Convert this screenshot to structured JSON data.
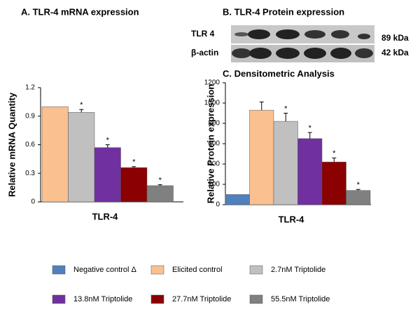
{
  "chart_data": [
    {
      "type": "bar",
      "title": "A.  TLR-4 mRNA expression",
      "ylabel": "Relative mRNA Quantity",
      "xlabel": "TLR-4",
      "values": [
        1.0,
        0.94,
        0.57,
        0.36,
        0.17
      ],
      "errors": [
        0,
        0.03,
        0.03,
        0.01,
        0.01
      ],
      "markers": [
        null,
        "*",
        "*",
        "*",
        "*"
      ],
      "colors": [
        "#fac090",
        "#c0c0c0",
        "#7030a0",
        "#8b0000",
        "#808080"
      ],
      "ylim": [
        0,
        1.2
      ],
      "yticks": [
        0,
        0.3,
        0.6,
        0.9,
        1.2
      ]
    },
    {
      "type": "bar",
      "title": "C. Densitometric Analysis",
      "ylabel": "Relative Protein expression",
      "xlabel": "TLR-4",
      "values": [
        100,
        930,
        820,
        650,
        420,
        140
      ],
      "errors": [
        0,
        80,
        80,
        60,
        40,
        10
      ],
      "markers": [
        null,
        null,
        "*",
        "*",
        "*",
        "*"
      ],
      "colors": [
        "#4f81bd",
        "#fac090",
        "#c0c0c0",
        "#7030a0",
        "#8b0000",
        "#808080"
      ],
      "ylim": [
        0,
        1200
      ],
      "yticks": [
        0,
        200,
        400,
        600,
        800,
        1000,
        1200
      ],
      "legend": [
        "Negative control Δ",
        "Elicited control",
        "2.7nM Triptolide",
        "13.8nM Triptolide",
        "27.7nM Triptolide",
        "55.5nM Triptolide"
      ]
    }
  ],
  "blot": {
    "title": "B.  TLR-4 Protein expression",
    "rows": [
      {
        "label": "TLR 4",
        "size": "89 kDa"
      },
      {
        "label": "β-actin",
        "size": "42 kDa"
      }
    ]
  }
}
